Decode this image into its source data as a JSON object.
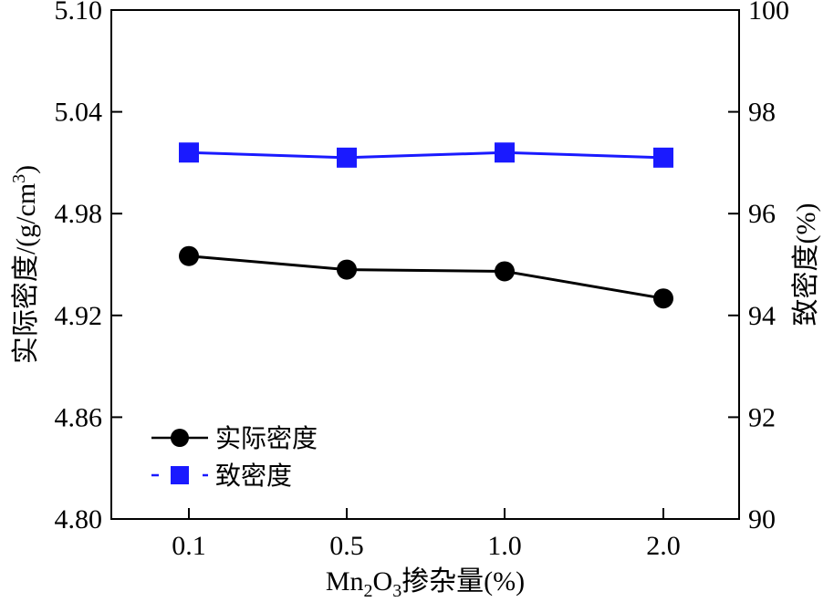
{
  "chart_data": {
    "type": "line",
    "categories": [
      "0.1",
      "0.5",
      "1.0",
      "2.0"
    ],
    "xlabel": {
      "main": "Mn",
      "sub1": "2",
      "mid": "O",
      "sub2": "3",
      "rest": "掺杂量(%)"
    },
    "ylabel_left": {
      "main": "实际密度/(g/cm",
      "sup": "3",
      "close": ")"
    },
    "ylabel_right": "致密度(%)",
    "ylim_left": [
      4.8,
      5.1
    ],
    "yticks_left": [
      "4.80",
      "4.86",
      "4.92",
      "4.98",
      "5.04",
      "5.10"
    ],
    "ylim_right": [
      90,
      100
    ],
    "yticks_right": [
      "90",
      "92",
      "94",
      "96",
      "98",
      "100"
    ],
    "grid": false,
    "legend_position": "lower-left",
    "series": [
      {
        "name": "实际密度",
        "axis": "left",
        "values": [
          4.955,
          4.947,
          4.946,
          4.93
        ],
        "color": "#000000",
        "marker": "circle"
      },
      {
        "name": "致密度",
        "axis": "right",
        "values": [
          97.2,
          97.1,
          97.2,
          97.1
        ],
        "color": "#1a1aff",
        "marker": "square"
      }
    ]
  }
}
